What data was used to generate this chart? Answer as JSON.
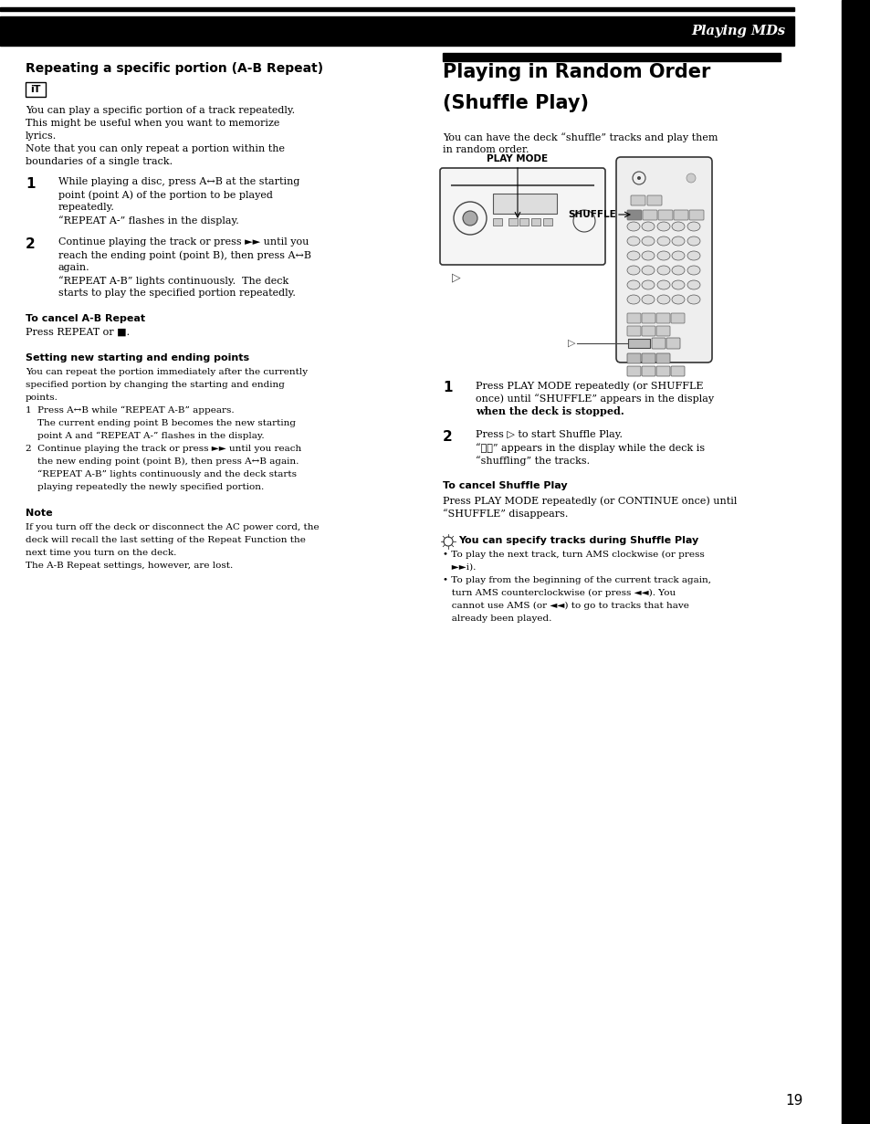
{
  "page_bg": "#ffffff",
  "header_bg": "#000000",
  "header_text": "Playing MDs",
  "header_text_color": "#ffffff",
  "page_number": "19",
  "figw": 9.54,
  "figh": 12.31,
  "dpi": 100,
  "sections": {
    "left_title": "Repeating a specific portion (A-B Repeat)",
    "left_icon": "iT",
    "step1_num": "1",
    "step2_num": "2",
    "cancel_ab_title": "To cancel A-B Repeat",
    "cancel_ab_text": "Press REPEAT or ■.",
    "setting_title": "Setting new starting and ending points",
    "note_title": "Note",
    "right_title_line1": "Playing in Random Order",
    "right_title_line2": "(Shuffle Play)",
    "right_intro1": "You can have the deck “shuffle” tracks and play them",
    "right_intro2": "in random order.",
    "play_mode_label": "PLAY MODE",
    "shuffle_label": "SHUFFLE",
    "rstep1_num": "1",
    "rstep2_num": "2",
    "cancel_shuffle_title": "To cancel Shuffle Play",
    "tip_title": "You can specify tracks during Shuffle Play"
  }
}
